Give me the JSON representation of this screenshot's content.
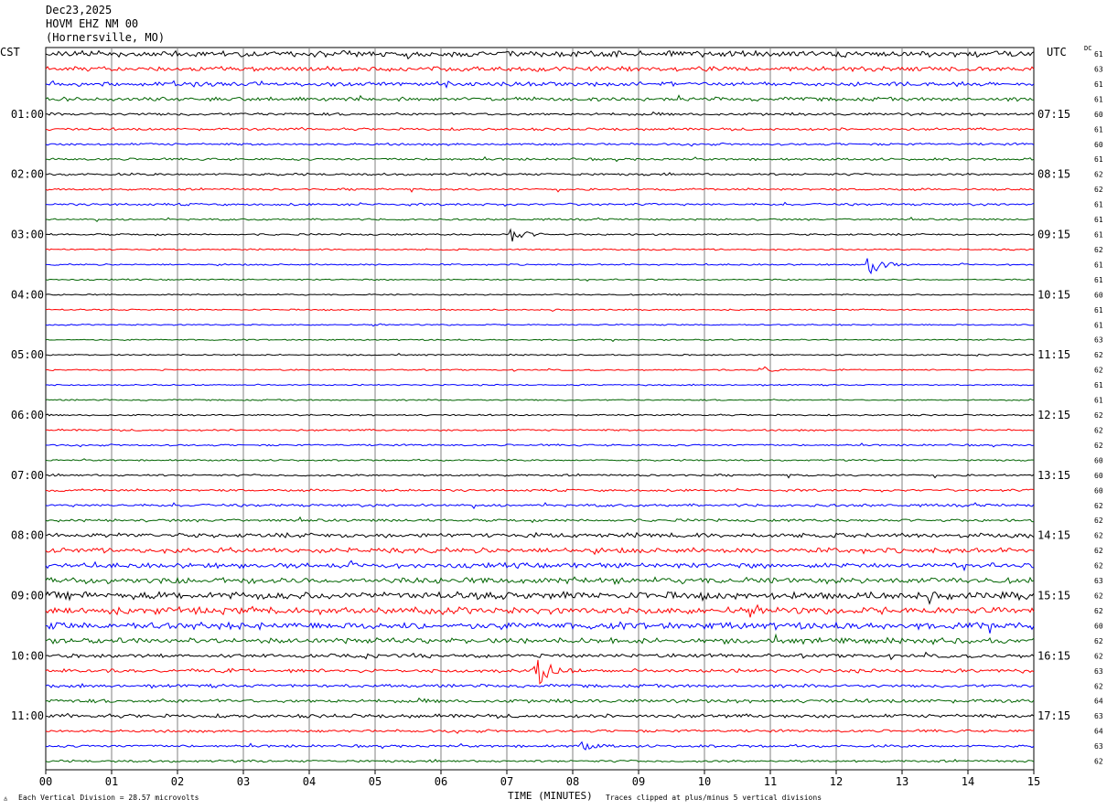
{
  "header": {
    "date": "Dec23,2025",
    "station": "HOVM EHZ NM 00",
    "location": "(Hornersville, MO)"
  },
  "left_timezone": "CST",
  "right_timezone": "UTC",
  "dc_label": "DC",
  "footer": {
    "scale_note": "Each Vertical Division =   28.57 microvolts",
    "x_axis_title": "TIME (MINUTES)",
    "clip_note": "Traces clipped at plus/minus 5 vertical divisions"
  },
  "colors": {
    "trace_cycle": [
      "#000000",
      "#ff0000",
      "#0000ff",
      "#006400"
    ],
    "grid": "#808080",
    "background": "#ffffff"
  },
  "chart_data": {
    "type": "line",
    "title": "HOVM EHZ NM 00",
    "xlabel": "TIME (MINUTES)",
    "xlim": [
      0,
      15
    ],
    "x_ticks": [
      "00",
      "01",
      "02",
      "03",
      "04",
      "05",
      "06",
      "07",
      "08",
      "09",
      "10",
      "11",
      "12",
      "13",
      "14",
      "15"
    ],
    "grid": "vertical every minute",
    "row_count": 48,
    "left_hour_labels": [
      {
        "row": 4,
        "label": "01:00"
      },
      {
        "row": 8,
        "label": "02:00"
      },
      {
        "row": 12,
        "label": "03:00"
      },
      {
        "row": 16,
        "label": "04:00"
      },
      {
        "row": 20,
        "label": "05:00"
      },
      {
        "row": 24,
        "label": "06:00"
      },
      {
        "row": 28,
        "label": "07:00"
      },
      {
        "row": 32,
        "label": "08:00"
      },
      {
        "row": 36,
        "label": "09:00"
      },
      {
        "row": 40,
        "label": "10:00"
      },
      {
        "row": 44,
        "label": "11:00"
      }
    ],
    "right_hour_labels": [
      {
        "row": 4,
        "label": "07:15"
      },
      {
        "row": 8,
        "label": "08:15"
      },
      {
        "row": 12,
        "label": "09:15"
      },
      {
        "row": 16,
        "label": "10:15"
      },
      {
        "row": 20,
        "label": "11:15"
      },
      {
        "row": 24,
        "label": "12:15"
      },
      {
        "row": 28,
        "label": "13:15"
      },
      {
        "row": 32,
        "label": "14:15"
      },
      {
        "row": 36,
        "label": "15:15"
      },
      {
        "row": 40,
        "label": "16:15"
      },
      {
        "row": 44,
        "label": "17:15"
      }
    ],
    "dc_offsets": [
      "61",
      "63",
      "61",
      "61",
      "60",
      "61",
      "60",
      "61",
      "62",
      "62",
      "61",
      "61",
      "61",
      "62",
      "61",
      "61",
      "60",
      "61",
      "61",
      "63",
      "62",
      "62",
      "61",
      "61",
      "62",
      "62",
      "62",
      "60",
      "60",
      "60",
      "62",
      "62",
      "62",
      "62",
      "62",
      "63",
      "62",
      "62",
      "60",
      "62",
      "62",
      "63",
      "62",
      "64",
      "63",
      "64",
      "63",
      "62"
    ],
    "row_noise_level": [
      2.6,
      2.0,
      1.8,
      1.6,
      1.2,
      1.1,
      1.0,
      1.0,
      1.0,
      0.9,
      1.0,
      0.8,
      0.8,
      0.7,
      0.7,
      0.6,
      0.6,
      0.6,
      0.6,
      0.6,
      0.6,
      0.6,
      0.6,
      0.6,
      0.7,
      0.8,
      0.8,
      0.7,
      0.9,
      1.0,
      1.2,
      1.2,
      2.0,
      2.2,
      2.2,
      2.6,
      3.2,
      3.0,
      3.0,
      2.4,
      1.6,
      1.6,
      1.4,
      1.6,
      1.6,
      1.2,
      1.1,
      1.0
    ],
    "events": [
      {
        "row": 12,
        "minute": 7.1,
        "amplitude": 2.0
      },
      {
        "row": 14,
        "minute": 12.5,
        "amplitude": 3.2
      },
      {
        "row": 21,
        "minute": 10.85,
        "amplitude": 1.2
      },
      {
        "row": 41,
        "minute": 7.45,
        "amplitude": 5.0
      },
      {
        "row": 46,
        "minute": 8.15,
        "amplitude": 1.0
      }
    ]
  }
}
